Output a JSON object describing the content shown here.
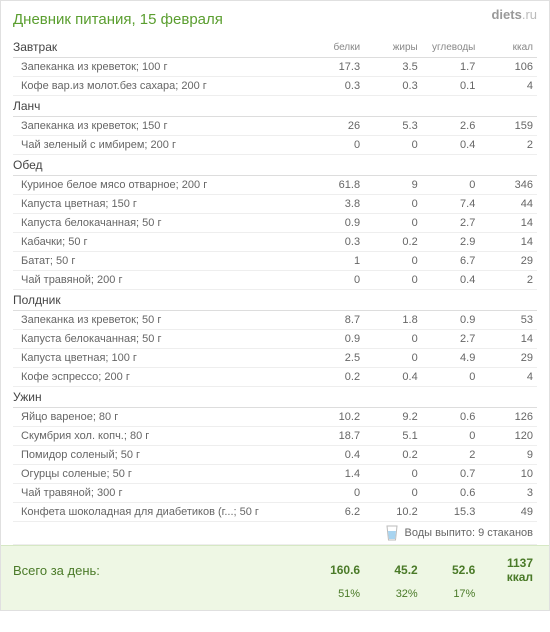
{
  "logo": {
    "brand": "diets",
    "tld": ".ru"
  },
  "title": "Дневник питания, 15 февраля",
  "columns": {
    "protein": "белки",
    "fat": "жиры",
    "carbs": "углеводы",
    "kcal": "ккал"
  },
  "meals": [
    {
      "name": "Завтрак",
      "items": [
        {
          "food": "Запеканка из креветок; 100 г",
          "p": "17.3",
          "f": "3.5",
          "c": "1.7",
          "k": "106"
        },
        {
          "food": "Кофе вар.из молот.без сахара; 200 г",
          "p": "0.3",
          "f": "0.3",
          "c": "0.1",
          "k": "4"
        }
      ]
    },
    {
      "name": "Ланч",
      "items": [
        {
          "food": "Запеканка из креветок; 150 г",
          "p": "26",
          "f": "5.3",
          "c": "2.6",
          "k": "159"
        },
        {
          "food": "Чай зеленый с имбирем; 200 г",
          "p": "0",
          "f": "0",
          "c": "0.4",
          "k": "2"
        }
      ]
    },
    {
      "name": "Обед",
      "items": [
        {
          "food": "Куриное белое мясо отварное; 200 г",
          "p": "61.8",
          "f": "9",
          "c": "0",
          "k": "346"
        },
        {
          "food": "Капуста цветная; 150 г",
          "p": "3.8",
          "f": "0",
          "c": "7.4",
          "k": "44"
        },
        {
          "food": "Капуста белокачанная; 50 г",
          "p": "0.9",
          "f": "0",
          "c": "2.7",
          "k": "14"
        },
        {
          "food": "Кабачки; 50 г",
          "p": "0.3",
          "f": "0.2",
          "c": "2.9",
          "k": "14"
        },
        {
          "food": "Батат; 50 г",
          "p": "1",
          "f": "0",
          "c": "6.7",
          "k": "29"
        },
        {
          "food": "Чай травяной; 200 г",
          "p": "0",
          "f": "0",
          "c": "0.4",
          "k": "2"
        }
      ]
    },
    {
      "name": "Полдник",
      "items": [
        {
          "food": "Запеканка из креветок; 50 г",
          "p": "8.7",
          "f": "1.8",
          "c": "0.9",
          "k": "53"
        },
        {
          "food": "Капуста белокачанная; 50 г",
          "p": "0.9",
          "f": "0",
          "c": "2.7",
          "k": "14"
        },
        {
          "food": "Капуста цветная; 100 г",
          "p": "2.5",
          "f": "0",
          "c": "4.9",
          "k": "29"
        },
        {
          "food": "Кофе эспрессо; 200 г",
          "p": "0.2",
          "f": "0.4",
          "c": "0",
          "k": "4"
        }
      ]
    },
    {
      "name": "Ужин",
      "items": [
        {
          "food": "Яйцо вареное; 80 г",
          "p": "10.2",
          "f": "9.2",
          "c": "0.6",
          "k": "126"
        },
        {
          "food": "Скумбрия хол. копч.; 80 г",
          "p": "18.7",
          "f": "5.1",
          "c": "0",
          "k": "120"
        },
        {
          "food": "Помидор соленый; 50 г",
          "p": "0.4",
          "f": "0.2",
          "c": "2",
          "k": "9"
        },
        {
          "food": "Огурцы соленые; 50 г",
          "p": "1.4",
          "f": "0",
          "c": "0.7",
          "k": "10"
        },
        {
          "food": "Чай травяной; 300 г",
          "p": "0",
          "f": "0",
          "c": "0.6",
          "k": "3"
        },
        {
          "food": "Конфета шоколадная для диабетиков (г...; 50 г",
          "p": "6.2",
          "f": "10.2",
          "c": "15.3",
          "k": "49"
        }
      ]
    }
  ],
  "water": {
    "label": "Воды выпито: 9 стаканов"
  },
  "totals": {
    "label": "Всего за день:",
    "p": "160.6",
    "f": "45.2",
    "c": "52.6",
    "k": "1137 ккал",
    "pp": "51%",
    "fp": "32%",
    "cp": "17%"
  },
  "colors": {
    "title": "#5a9e2f",
    "totals_bg": "#eef7e4",
    "totals_text": "#4a7a28"
  }
}
